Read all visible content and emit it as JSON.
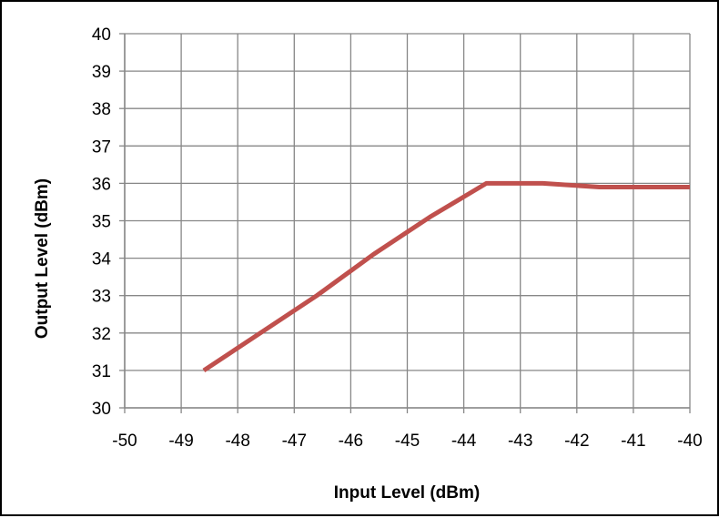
{
  "chart_data": {
    "type": "line",
    "title": "",
    "xlabel": "Input Level (dBm)",
    "ylabel": "Output Level (dBm)",
    "xlim": [
      -50,
      -40
    ],
    "ylim": [
      30,
      40
    ],
    "x_ticks": [
      -50,
      -49,
      -48,
      -47,
      -46,
      -45,
      -44,
      -43,
      -42,
      -41,
      -40
    ],
    "y_ticks": [
      30,
      31,
      32,
      33,
      34,
      35,
      36,
      37,
      38,
      39,
      40
    ],
    "grid": true,
    "legend": "none",
    "series": [
      {
        "color": "#c0504d",
        "x": [
          -48.6,
          -47.6,
          -46.6,
          -45.6,
          -44.6,
          -43.6,
          -42.6,
          -41.6,
          -40.6,
          -40.0
        ],
        "y": [
          31.0,
          32.0,
          33.0,
          34.1,
          35.1,
          36.0,
          36.0,
          35.9,
          35.9,
          35.9
        ]
      }
    ]
  }
}
